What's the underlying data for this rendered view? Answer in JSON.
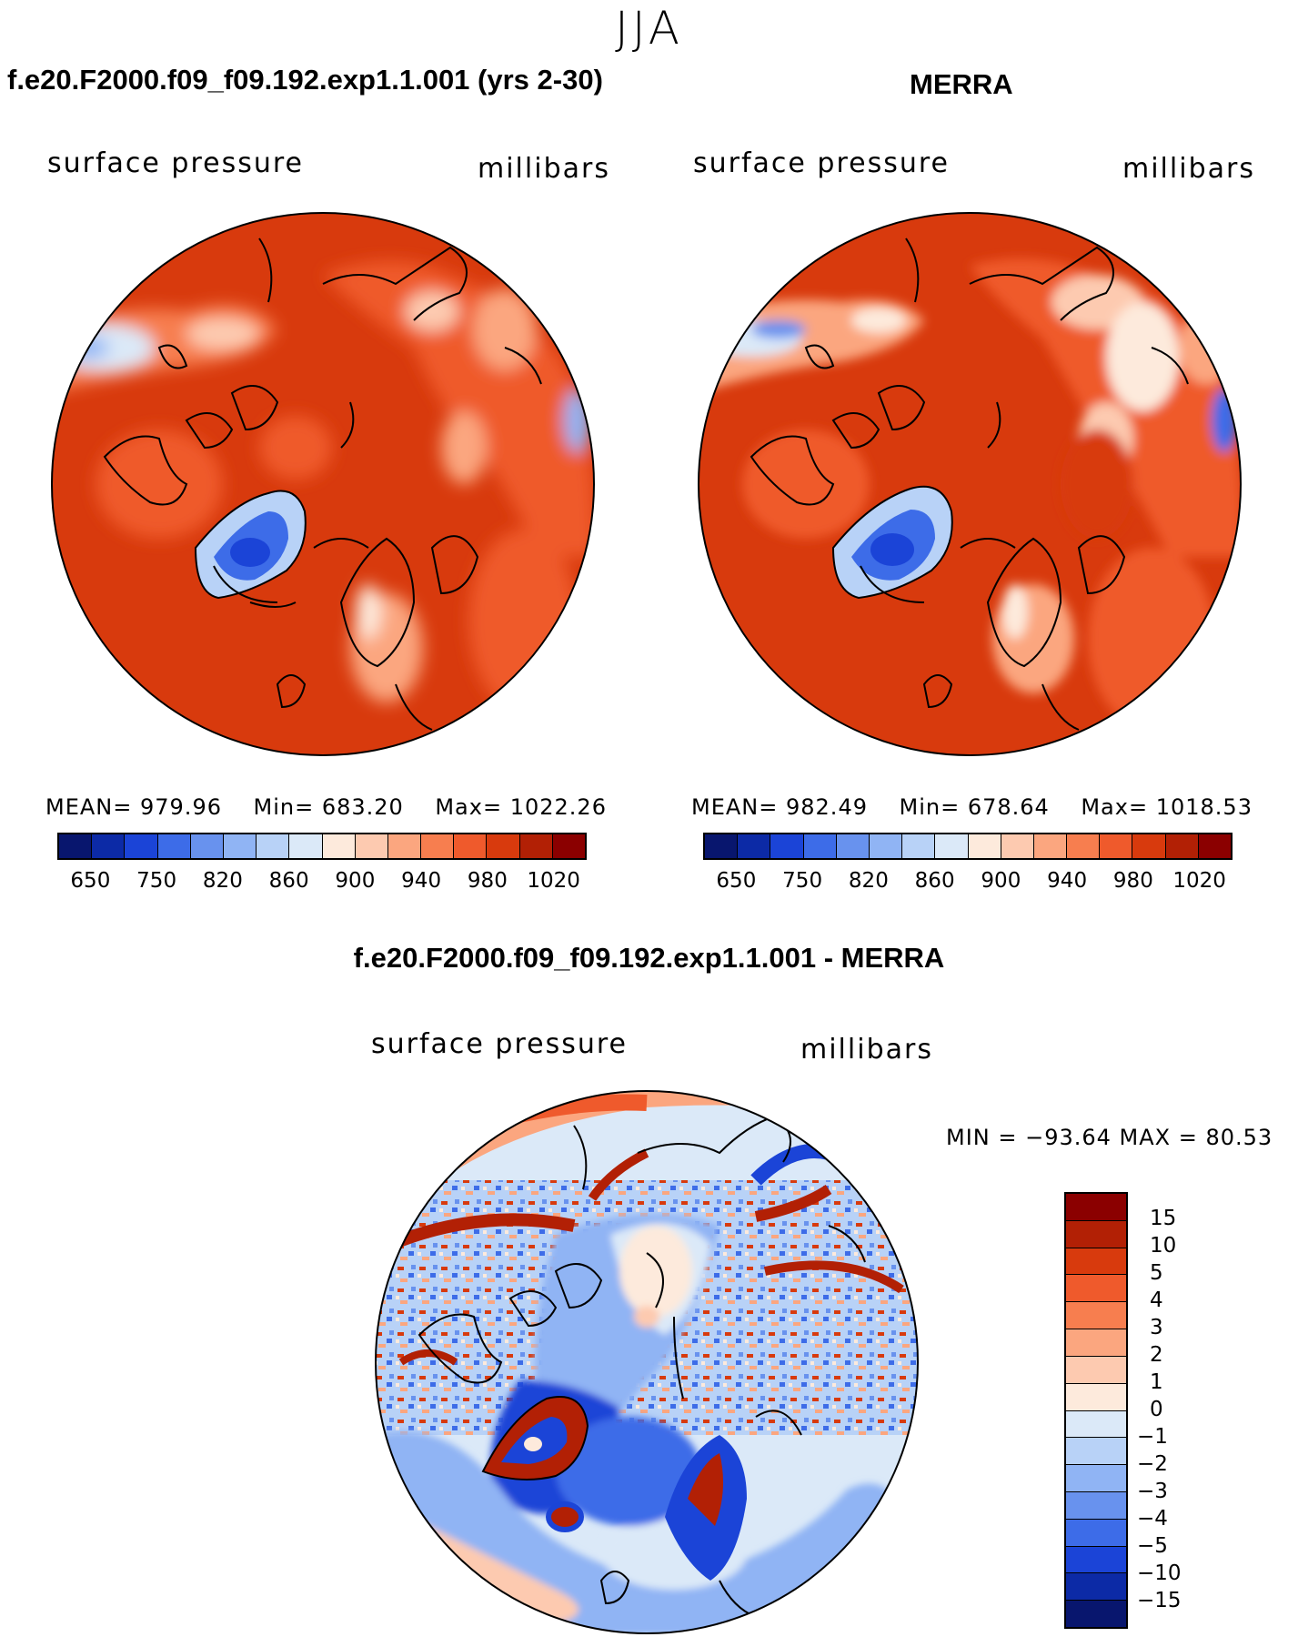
{
  "season": "JJA",
  "panels": [
    {
      "title": "f.e20.F2000.f09_f09.192.exp1.1.001 (yrs 2-30)",
      "variable": "surface pressure",
      "units": "millibars",
      "stats": {
        "mean_label": "MEAN=",
        "mean": "979.96",
        "min_label": "Min=",
        "min": "683.20",
        "max_label": "Max=",
        "max": "1022.26"
      }
    },
    {
      "title": "MERRA",
      "variable": "surface pressure",
      "units": "millibars",
      "stats": {
        "mean_label": "MEAN=",
        "mean": "982.49",
        "min_label": "Min=",
        "min": "678.64",
        "max_label": "Max=",
        "max": "1018.53"
      }
    }
  ],
  "diff": {
    "title": "f.e20.F2000.f09_f09.192.exp1.1.001 - MERRA",
    "variable": "surface pressure",
    "units": "millibars",
    "minmax_text": "MIN =  −93.64  MAX =    80.53",
    "colorbar_labels": [
      "15",
      "10",
      "5",
      "4",
      "3",
      "2",
      "1",
      "0",
      "−1",
      "−2",
      "−3",
      "−4",
      "−5",
      "−10",
      "−15"
    ],
    "colorbar_colors": [
      "#8b0000",
      "#b22005",
      "#d83a0d",
      "#ef5a2c",
      "#f77e4f",
      "#fba67f",
      "#fdcab0",
      "#fdeadc",
      "#dbe9f8",
      "#b8d2f7",
      "#90b4f4",
      "#6892ee",
      "#3d6ce8",
      "#1b44d7",
      "#0c2aa6",
      "#08166e"
    ]
  },
  "abs_colorbar": {
    "labels": [
      "650",
      "750",
      "820",
      "860",
      "900",
      "940",
      "980",
      "1020"
    ],
    "colors": [
      "#08166e",
      "#0c2aa6",
      "#1b44d7",
      "#3d6ce8",
      "#6892ee",
      "#90b4f4",
      "#b8d2f7",
      "#dbe9f8",
      "#fdeadc",
      "#fdcab0",
      "#fba67f",
      "#f77e4f",
      "#ef5a2c",
      "#d83a0d",
      "#b22005",
      "#8b0000"
    ]
  }
}
